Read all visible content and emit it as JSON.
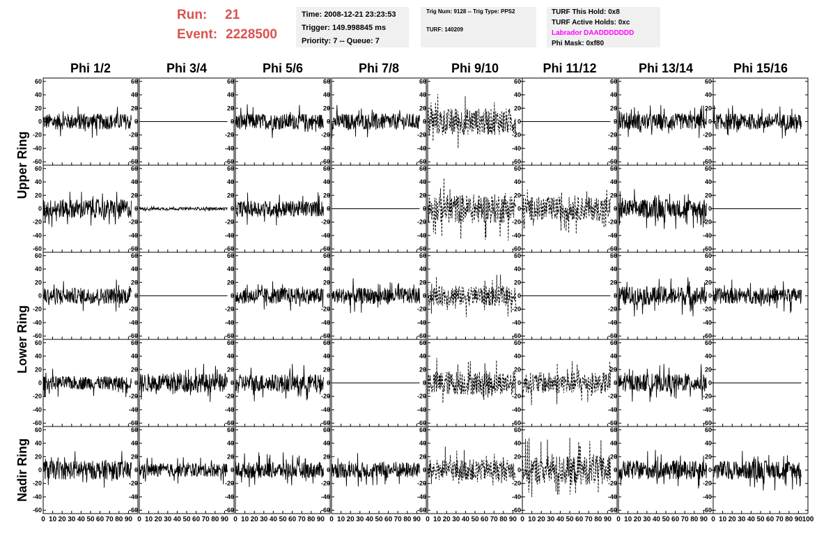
{
  "header": {
    "run_label": "Run:",
    "run_value": "21",
    "event_label": "Event:",
    "event_value": "2228500",
    "time": "Time: 2008-12-21 23:23:53",
    "trigger": "Trigger: 149.998845 ms",
    "priority": "Priority: 7 -- Queue: 7",
    "trig_num": "Trig Num: 9128 -- Trig Type: PPS2",
    "turf_num": "TURF: 140209",
    "turf_this_hold": "TURF This Hold: 0x8",
    "turf_active_holds": "TURF Active Holds: 0xc",
    "labrador": "Labrador DAADDDDDDD",
    "phi_mask": "Phi Mask: 0xf80"
  },
  "colors": {
    "run_event": "#d9534f",
    "labrador": "#ff00ff",
    "info_box_bg": "#f0f0f0",
    "trace": "#000000"
  },
  "chart_data": {
    "type": "line",
    "columns": [
      "Phi 1/2",
      "Phi 3/4",
      "Phi 5/6",
      "Phi 7/8",
      "Phi 9/10",
      "Phi 11/12",
      "Phi 13/14",
      "Phi 15/16"
    ],
    "rings": [
      "Upper Ring",
      "Lower Ring",
      "Nadir Ring"
    ],
    "xlim": [
      0,
      100
    ],
    "ylim": [
      -65,
      65
    ],
    "x_ticks": [
      0,
      10,
      20,
      30,
      40,
      50,
      60,
      70,
      80,
      90,
      100
    ],
    "x_tick_labels": [
      "0",
      "10",
      "20",
      "30",
      "40",
      "50",
      "60",
      "70",
      "80",
      "90",
      "100"
    ],
    "y_ticks": [
      -60,
      -40,
      -20,
      0,
      20,
      40,
      60
    ],
    "y_tick_labels": [
      "-60",
      "-40",
      "-20",
      "0",
      "20",
      "40",
      "60"
    ],
    "trace_x_range": [
      0,
      93
    ],
    "grid": false,
    "rows": [
      {
        "ring": "Upper Ring",
        "amplitudes": [
          12,
          0,
          12,
          12,
          20,
          0,
          12,
          12
        ],
        "dashed": [
          false,
          false,
          false,
          false,
          true,
          false,
          false,
          false
        ]
      },
      {
        "ring": "Upper Ring",
        "amplitudes": [
          14,
          2,
          12,
          0,
          22,
          18,
          14,
          0
        ],
        "dashed": [
          false,
          false,
          false,
          false,
          true,
          true,
          false,
          false
        ]
      },
      {
        "ring": "Lower Ring",
        "amplitudes": [
          12,
          0,
          12,
          12,
          15,
          0,
          14,
          12
        ],
        "dashed": [
          false,
          false,
          false,
          false,
          true,
          false,
          false,
          false
        ]
      },
      {
        "ring": "Lower Ring",
        "amplitudes": [
          10,
          14,
          13,
          0,
          18,
          16,
          13,
          0
        ],
        "dashed": [
          false,
          false,
          false,
          false,
          true,
          true,
          false,
          false
        ]
      },
      {
        "ring": "Nadir Ring",
        "amplitudes": [
          14,
          10,
          12,
          12,
          16,
          22,
          14,
          14
        ],
        "dashed": [
          false,
          false,
          false,
          false,
          true,
          true,
          false,
          false
        ]
      }
    ]
  }
}
